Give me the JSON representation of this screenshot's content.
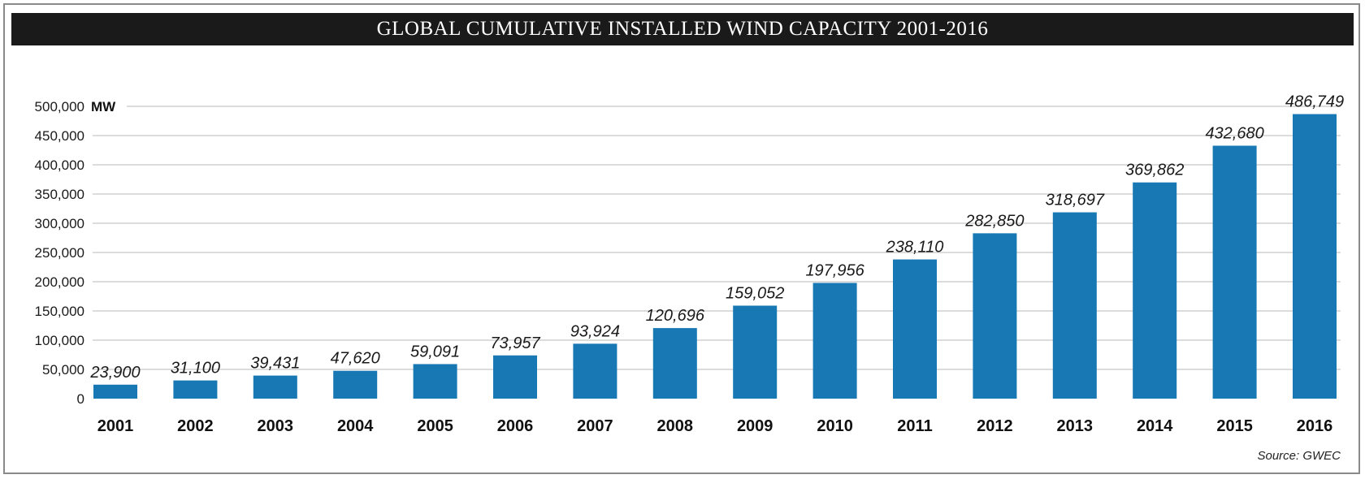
{
  "title": "GLOBAL CUMULATIVE INSTALLED WIND CAPACITY 2001-2016",
  "source": "Source: GWEC",
  "colors": {
    "bar": "#1878b4",
    "grid": "#c8c8c8",
    "title_bg": "#1a1a1a"
  },
  "chart_data": {
    "type": "bar",
    "title": "GLOBAL CUMULATIVE INSTALLED WIND CAPACITY 2001-2016",
    "unit": "MW",
    "categories": [
      "2001",
      "2002",
      "2003",
      "2004",
      "2005",
      "2006",
      "2007",
      "2008",
      "2009",
      "2010",
      "2011",
      "2012",
      "2013",
      "2014",
      "2015",
      "2016"
    ],
    "values": [
      23900,
      31100,
      39431,
      47620,
      59091,
      73957,
      93924,
      120696,
      159052,
      197956,
      238110,
      282850,
      318697,
      369862,
      432680,
      486749
    ],
    "data_labels": [
      "23,900",
      "31,100",
      "39,431",
      "47,620",
      "59,091",
      "73,957",
      "93,924",
      "120,696",
      "159,052",
      "197,956",
      "238,110",
      "282,850",
      "318,697",
      "369,862",
      "432,680",
      "486,749"
    ],
    "y_ticks": [
      0,
      50000,
      100000,
      150000,
      200000,
      250000,
      300000,
      350000,
      400000,
      450000,
      500000
    ],
    "y_tick_labels": [
      "0",
      "50,000",
      "100,000",
      "150,000",
      "200,000",
      "250,000",
      "300,000",
      "350,000",
      "400,000",
      "450,000",
      "500,000"
    ],
    "ylim": [
      0,
      500000
    ],
    "grid": true
  }
}
